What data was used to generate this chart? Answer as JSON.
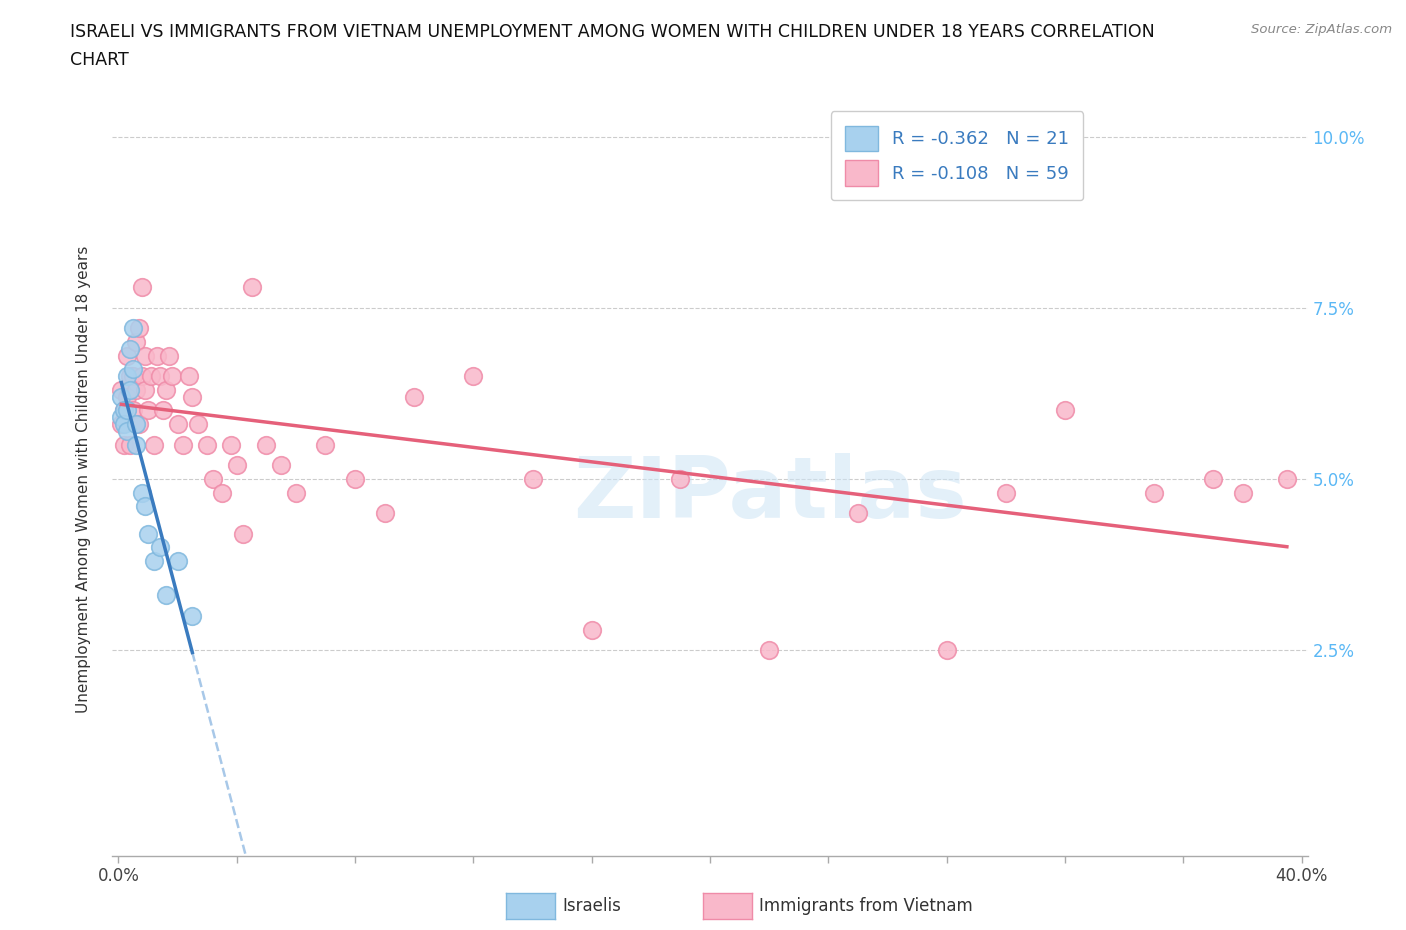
{
  "title_line1": "ISRAELI VS IMMIGRANTS FROM VIETNAM UNEMPLOYMENT AMONG WOMEN WITH CHILDREN UNDER 18 YEARS CORRELATION",
  "title_line2": "CHART",
  "source": "Source: ZipAtlas.com",
  "ylabel_label": "Unemployment Among Women with Children Under 18 years",
  "legend_r_israeli": "-0.362",
  "legend_n_israeli": "21",
  "legend_r_vietnam": "-0.108",
  "legend_n_vietnam": "59",
  "israeli_color": "#a8d1ee",
  "vietnam_color": "#f9b8ca",
  "israeli_edge": "#80b8de",
  "vietnam_edge": "#ef8ba8",
  "trend_israeli_color": "#3a7bbf",
  "trend_vietnam_color": "#e5607a",
  "trend_dashed_color": "#a8c8e8",
  "background": "#ffffff",
  "watermark": "ZIPatlas",
  "xlim_min": 0.0,
  "xlim_max": 0.4,
  "ylim_min": 0.0,
  "ylim_max": 0.105,
  "x_tick_positions": [
    0.0,
    0.04,
    0.08,
    0.12,
    0.16,
    0.2,
    0.24,
    0.28,
    0.32,
    0.36,
    0.4
  ],
  "y_tick_positions": [
    0.0,
    0.025,
    0.05,
    0.075,
    0.1
  ],
  "israeli_x": [
    0.001,
    0.001,
    0.002,
    0.002,
    0.003,
    0.003,
    0.003,
    0.004,
    0.004,
    0.005,
    0.005,
    0.006,
    0.006,
    0.008,
    0.009,
    0.01,
    0.012,
    0.014,
    0.016,
    0.02,
    0.025
  ],
  "israeli_y": [
    0.059,
    0.062,
    0.06,
    0.058,
    0.057,
    0.06,
    0.065,
    0.063,
    0.069,
    0.066,
    0.072,
    0.058,
    0.055,
    0.048,
    0.046,
    0.042,
    0.038,
    0.04,
    0.033,
    0.038,
    0.03
  ],
  "vietnam_x": [
    0.001,
    0.001,
    0.002,
    0.002,
    0.003,
    0.003,
    0.004,
    0.004,
    0.005,
    0.005,
    0.006,
    0.006,
    0.007,
    0.007,
    0.008,
    0.008,
    0.009,
    0.009,
    0.01,
    0.011,
    0.012,
    0.013,
    0.014,
    0.015,
    0.016,
    0.017,
    0.018,
    0.02,
    0.022,
    0.024,
    0.025,
    0.027,
    0.03,
    0.032,
    0.035,
    0.038,
    0.04,
    0.042,
    0.045,
    0.05,
    0.055,
    0.06,
    0.07,
    0.08,
    0.09,
    0.1,
    0.12,
    0.14,
    0.16,
    0.19,
    0.22,
    0.25,
    0.28,
    0.3,
    0.32,
    0.35,
    0.37,
    0.38,
    0.395
  ],
  "vietnam_y": [
    0.058,
    0.063,
    0.06,
    0.055,
    0.068,
    0.062,
    0.055,
    0.065,
    0.06,
    0.065,
    0.07,
    0.063,
    0.058,
    0.072,
    0.065,
    0.078,
    0.063,
    0.068,
    0.06,
    0.065,
    0.055,
    0.068,
    0.065,
    0.06,
    0.063,
    0.068,
    0.065,
    0.058,
    0.055,
    0.065,
    0.062,
    0.058,
    0.055,
    0.05,
    0.048,
    0.055,
    0.052,
    0.042,
    0.078,
    0.055,
    0.052,
    0.048,
    0.055,
    0.05,
    0.045,
    0.062,
    0.065,
    0.05,
    0.028,
    0.05,
    0.025,
    0.045,
    0.025,
    0.048,
    0.06,
    0.048,
    0.05,
    0.048,
    0.05
  ]
}
